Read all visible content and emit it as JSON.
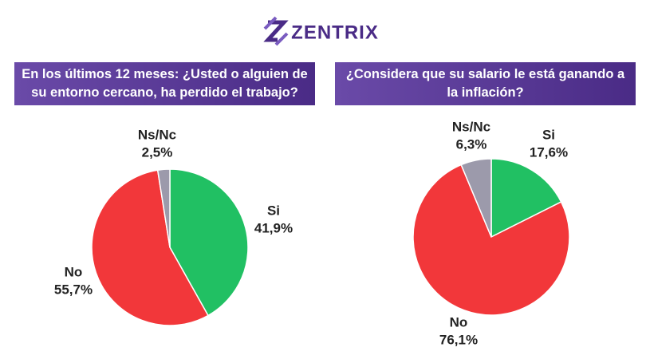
{
  "brand": "ZENTRIX",
  "chart_data": [
    {
      "type": "pie",
      "title": "En los últimos 12 meses: ¿Usted o alguien de su entorno cercano, ha perdido el trabajo?",
      "categories": [
        "Si",
        "No",
        "Ns/Nc"
      ],
      "values": [
        41.9,
        55.7,
        2.5
      ],
      "value_labels": [
        "41,9%",
        "55,7%",
        "2,5%"
      ],
      "colors": [
        "#21c063",
        "#f2373a",
        "#9c9aab"
      ]
    },
    {
      "type": "pie",
      "title": "¿Considera que su salario le está ganando a la inflación?",
      "categories": [
        "Si",
        "No",
        "Ns/Nc"
      ],
      "values": [
        17.6,
        76.1,
        6.3
      ],
      "value_labels": [
        "17,6%",
        "76,1%",
        "6,3%"
      ],
      "colors": [
        "#21c063",
        "#f2373a",
        "#9c9aab"
      ]
    }
  ]
}
